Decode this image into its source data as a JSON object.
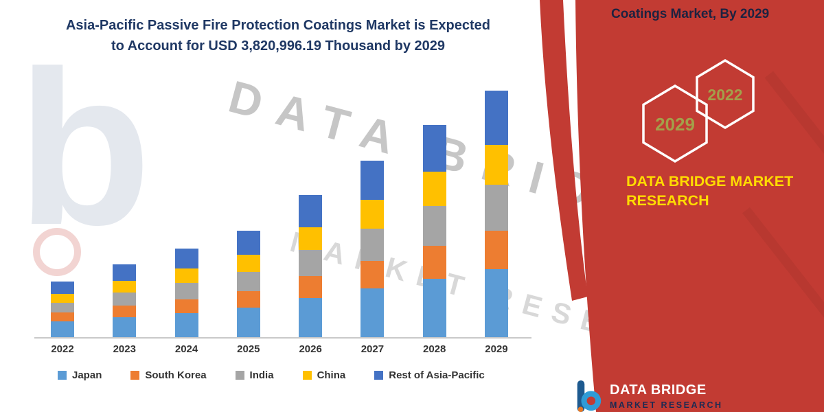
{
  "title": {
    "line1": "Asia-Pacific Passive Fire Protection Coatings Market is Expected",
    "line2": "to Account for USD 3,820,996.19 Thousand by 2029"
  },
  "watermark": {
    "line1": "DATA BRIDGE",
    "line2": "MARKET RESEARCH",
    "logo_letter": "b"
  },
  "red_panel": {
    "heading": "Coatings Market, By 2029",
    "hexagons": [
      {
        "label": "2029"
      },
      {
        "label": "2022"
      }
    ],
    "brand_line1": "DATA BRIDGE MARKET",
    "brand_line2": "RESEARCH",
    "colors": {
      "panel_red": "#C23B33",
      "hexagon_border": "#FFFFFF",
      "hexagon_text": "#A3A04A",
      "brand_text": "#FFDC00",
      "heading_text": "#1D2240"
    }
  },
  "footer_logo": {
    "name": "DATA BRIDGE",
    "sub": "MARKET RESEARCH"
  },
  "chart_data": {
    "type": "bar",
    "stacked": true,
    "title": "Asia-Pacific Passive Fire Protection Coatings Market is Expected to Account for USD 3,820,996.19 Thousand by 2029",
    "units": "USD Thousand",
    "categories": [
      "2022",
      "2023",
      "2024",
      "2025",
      "2026",
      "2027",
      "2028",
      "2029"
    ],
    "series": [
      {
        "name": "Japan",
        "color": "#5B9BD5",
        "values": [
          255000,
          319000,
          383000,
          468000,
          617000,
          766000,
          915000,
          1064000
        ]
      },
      {
        "name": "South Korea",
        "color": "#ED7D31",
        "values": [
          138000,
          181000,
          213000,
          255000,
          341000,
          426000,
          511000,
          596000
        ]
      },
      {
        "name": "India",
        "color": "#A5A5A5",
        "values": [
          149000,
          202000,
          255000,
          298000,
          404000,
          500000,
          607000,
          702000
        ]
      },
      {
        "name": "China",
        "color": "#FFC000",
        "values": [
          138000,
          181000,
          224000,
          266000,
          351000,
          447000,
          532000,
          617000
        ]
      },
      {
        "name": "Rest of Asia-Pacific",
        "color": "#4472C4",
        "values": [
          192000,
          255000,
          309000,
          372000,
          490000,
          596000,
          724000,
          841000
        ]
      }
    ],
    "legend_position": "bottom",
    "grid": false,
    "y_axis_visible": false,
    "values_estimated": true
  }
}
